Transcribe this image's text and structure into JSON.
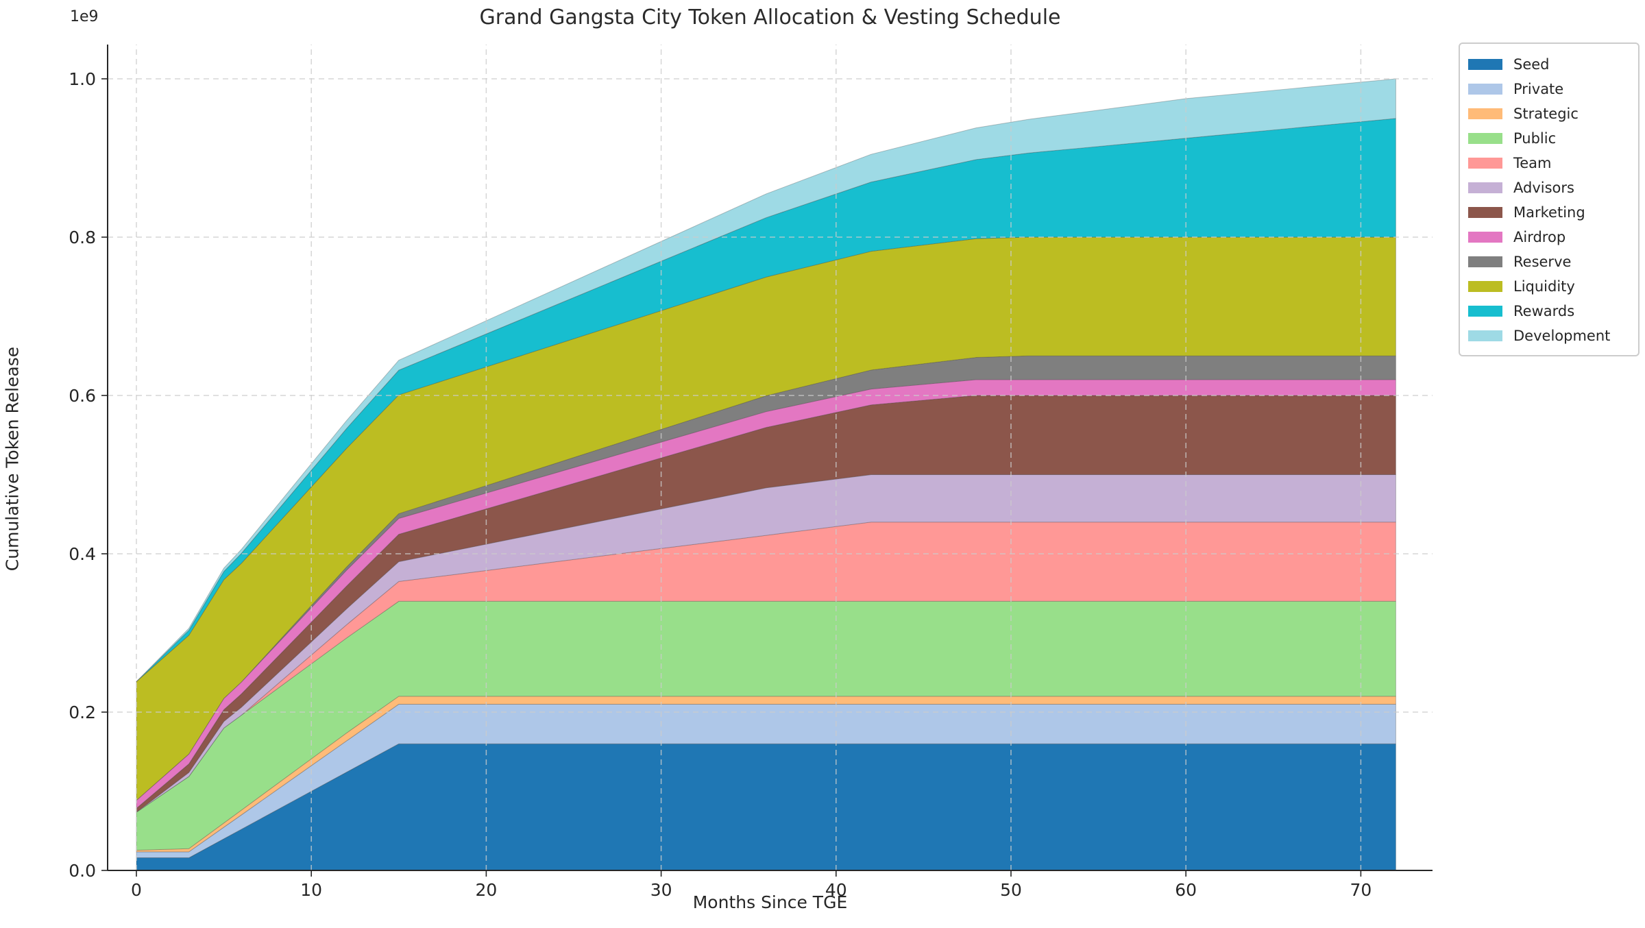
{
  "title": "Grand Gangsta City Token Allocation & Vesting Schedule",
  "chart_data": {
    "type": "area",
    "stacked": true,
    "title": "Grand Gangsta City Token Allocation & Vesting Schedule",
    "xlabel": "Months Since TGE",
    "ylabel": "Cumulative Token Release",
    "y_axis_multiplier_label": "1e9",
    "values_unit": "millions of tokens",
    "grid": true,
    "grid_style": "dashed",
    "legend_position": "outside upper right",
    "xlim": [
      -1.65,
      74.1
    ],
    "ylim_1e9": [
      0,
      1.043
    ],
    "x_ticks": [
      0,
      10,
      20,
      30,
      40,
      50,
      60,
      70
    ],
    "y_ticks": [
      {
        "v": 0.0,
        "label": "0.0"
      },
      {
        "v": 0.2,
        "label": "0.2"
      },
      {
        "v": 0.4,
        "label": "0.4"
      },
      {
        "v": 0.6,
        "label": "0.6"
      },
      {
        "v": 0.8,
        "label": "0.8"
      },
      {
        "v": 1.0,
        "label": "1.0"
      }
    ],
    "x": [
      0,
      3,
      5,
      6,
      9,
      12,
      15,
      18,
      24,
      30,
      36,
      42,
      48,
      51,
      54,
      60,
      66,
      72
    ],
    "series": [
      {
        "name": "Seed",
        "color": "#1f77b4",
        "total": 160,
        "values": [
          16,
          16,
          40,
          52,
          88,
          124,
          160,
          160,
          160,
          160,
          160,
          160,
          160,
          160,
          160,
          160,
          160,
          160
        ]
      },
      {
        "name": "Private",
        "color": "#aec7e8",
        "total": 50,
        "values": [
          7.5,
          7.5,
          14.6,
          18.1,
          28.8,
          39.4,
          50,
          50,
          50,
          50,
          50,
          50,
          50,
          50,
          50,
          50,
          50,
          50
        ]
      },
      {
        "name": "Strategic",
        "color": "#ffbb78",
        "total": 10,
        "values": [
          2,
          4,
          5.3,
          6,
          8,
          10,
          10,
          10,
          10,
          10,
          10,
          10,
          10,
          10,
          10,
          10,
          10,
          10
        ]
      },
      {
        "name": "Public",
        "color": "#98df8a",
        "total": 120,
        "values": [
          48,
          91.2,
          120,
          120,
          120,
          120,
          120,
          120,
          120,
          120,
          120,
          120,
          120,
          120,
          120,
          120,
          120,
          120
        ]
      },
      {
        "name": "Team",
        "color": "#ff9896",
        "total": 100,
        "values": [
          0,
          0,
          0,
          0,
          8.3,
          16.7,
          25,
          33.3,
          50,
          66.7,
          83.3,
          100,
          100,
          100,
          100,
          100,
          100,
          100
        ]
      },
      {
        "name": "Advisors",
        "color": "#c5b0d5",
        "total": 60,
        "values": [
          0,
          5,
          8.3,
          10,
          15,
          20,
          25,
          30,
          40,
          50,
          60,
          60,
          60,
          60,
          60,
          60,
          60,
          60
        ]
      },
      {
        "name": "Marketing",
        "color": "#8c564b",
        "total": 100,
        "values": [
          5,
          10.9,
          14.9,
          16.9,
          22.8,
          28.8,
          34.7,
          40.6,
          52.5,
          64.4,
          76.3,
          88.1,
          100,
          100,
          100,
          100,
          100,
          100
        ]
      },
      {
        "name": "Airdrop",
        "color": "#e377c2",
        "total": 20,
        "values": [
          10,
          12.5,
          14.2,
          15,
          17.5,
          20,
          20,
          20,
          20,
          20,
          20,
          20,
          20,
          20,
          20,
          20,
          20,
          20
        ]
      },
      {
        "name": "Reserve",
        "color": "#7f7f7f",
        "total": 30,
        "values": [
          0,
          0,
          0,
          0,
          2,
          4,
          6,
          8,
          12,
          16,
          20,
          24,
          28,
          30,
          30,
          30,
          30,
          30
        ]
      },
      {
        "name": "Liquidity",
        "color": "#bcbd22",
        "total": 150,
        "values": [
          150,
          150,
          150,
          150,
          150,
          150,
          150,
          150,
          150,
          150,
          150,
          150,
          150,
          150,
          150,
          150,
          150,
          150
        ]
      },
      {
        "name": "Rewards",
        "color": "#17becf",
        "total": 150,
        "values": [
          0,
          6.3,
          10.4,
          12.5,
          18.8,
          25,
          31.3,
          37.5,
          50,
          62.5,
          75,
          87.5,
          100,
          106.3,
          112.5,
          125,
          137.5,
          150
        ]
      },
      {
        "name": "Development",
        "color": "#9edae5",
        "total": 50,
        "values": [
          0,
          2.5,
          4.2,
          5,
          7.5,
          10,
          12.5,
          15,
          20,
          25,
          30,
          35,
          40,
          42.5,
          45,
          50,
          50,
          50
        ]
      }
    ]
  }
}
